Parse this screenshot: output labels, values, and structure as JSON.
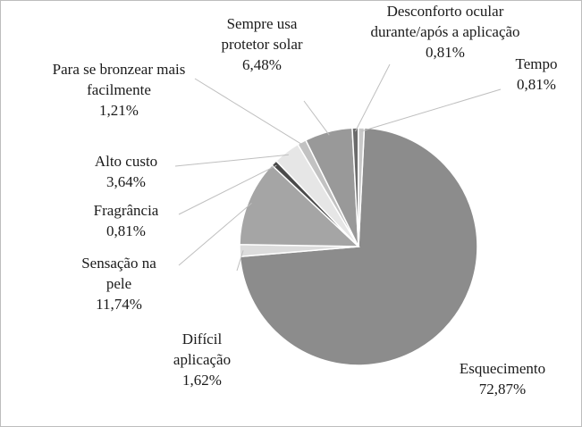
{
  "chart_data": {
    "type": "pie",
    "title": "",
    "legend": "none",
    "slices": [
      {
        "label": [
          "Esquecimento"
        ],
        "value": 72.87,
        "value_text": "72,87%",
        "color": "#8c8c8c"
      },
      {
        "label": [
          "Difícil",
          "aplicação"
        ],
        "value": 1.62,
        "value_text": "1,62%",
        "color": "#dcdcdc"
      },
      {
        "label": [
          "Sensação na",
          "pele"
        ],
        "value": 11.74,
        "value_text": "11,74%",
        "color": "#a5a5a5"
      },
      {
        "label": [
          "Fragrância"
        ],
        "value": 0.81,
        "value_text": "0,81%",
        "color": "#4a4a4a"
      },
      {
        "label": [
          "Alto custo"
        ],
        "value": 3.64,
        "value_text": "3,64%",
        "color": "#e6e6e6"
      },
      {
        "label": [
          "Para se bronzear mais",
          "facilmente"
        ],
        "value": 1.21,
        "value_text": "1,21%",
        "color": "#c2c2c2"
      },
      {
        "label": [
          "Sempre usa",
          "protetor solar"
        ],
        "value": 6.48,
        "value_text": "6,48%",
        "color": "#999999"
      },
      {
        "label": [
          "Desconforto ocular",
          "durante/após a aplicação"
        ],
        "value": 0.81,
        "value_text": "0,81%",
        "color": "#6b6b6b"
      },
      {
        "label": [
          "Tempo"
        ],
        "value": 0.81,
        "value_text": "0,81%",
        "color": "#c8c8c8"
      }
    ]
  }
}
